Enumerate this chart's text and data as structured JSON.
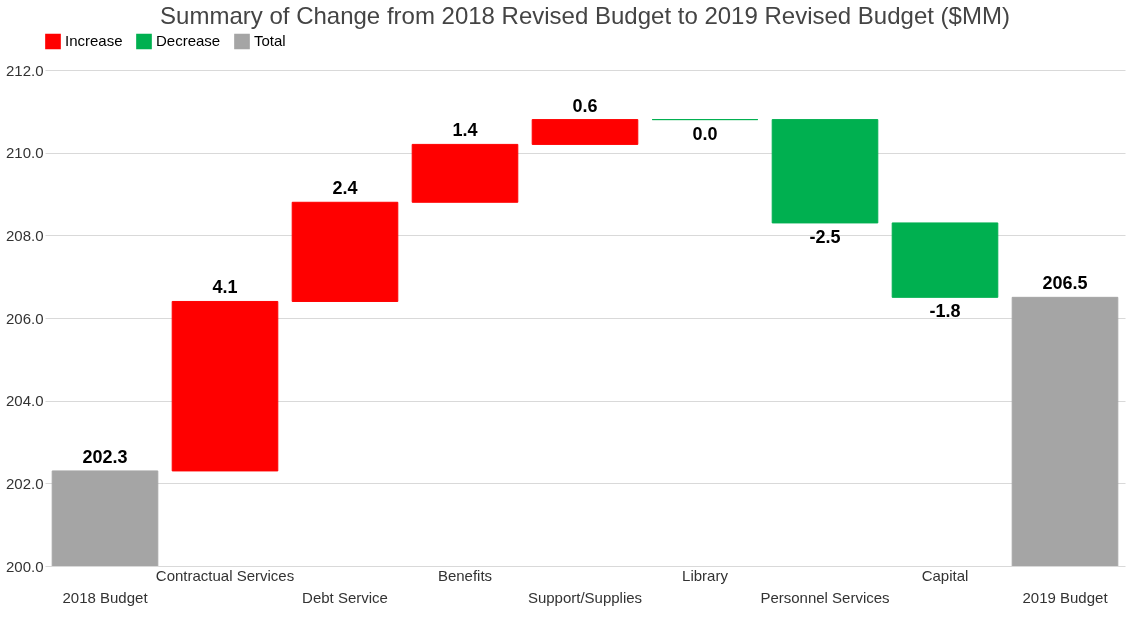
{
  "chart_data": {
    "type": "bar",
    "title": "Summary of Change from 2018 Revised Budget to 2019 Revised Budget ($MM)",
    "categories": [
      "2018 Budget",
      "Contractual Services",
      "Debt Service",
      "Benefits",
      "Support/Supplies",
      "Library",
      "Personnel Services",
      "Capital",
      "2019 Budget"
    ],
    "series": [
      {
        "name": "Increase",
        "color": "#ff0000",
        "values": [
          null,
          4.1,
          2.4,
          1.4,
          0.6,
          null,
          null,
          null,
          null
        ],
        "base": [
          null,
          202.3,
          206.4,
          208.8,
          210.2,
          null,
          null,
          null,
          null
        ],
        "value_labels": [
          null,
          "4.1",
          "2.4",
          "1.4",
          "0.6",
          null,
          null,
          null,
          null
        ]
      },
      {
        "name": "Decrease",
        "color": "#00b050",
        "values": [
          null,
          null,
          null,
          null,
          null,
          0.0,
          -2.5,
          -1.8,
          null
        ],
        "base": [
          null,
          null,
          null,
          null,
          null,
          210.8,
          210.8,
          208.3,
          null
        ],
        "value_labels": [
          null,
          null,
          null,
          null,
          null,
          "0.0",
          "-2.5",
          "-1.8",
          null
        ]
      },
      {
        "name": "Total",
        "color": "#a5a5a5",
        "values": [
          202.3,
          null,
          null,
          null,
          null,
          null,
          null,
          null,
          206.5
        ],
        "value_labels": [
          "202.3",
          null,
          null,
          null,
          null,
          null,
          null,
          null,
          "206.5"
        ]
      }
    ],
    "ylim": [
      200,
      212
    ],
    "yticks": [
      {
        "value": 200,
        "label": "200.0"
      },
      {
        "value": 202,
        "label": "202.0"
      },
      {
        "value": 204,
        "label": "204.0"
      },
      {
        "value": 206,
        "label": "206.0"
      },
      {
        "value": 208,
        "label": "208.0"
      },
      {
        "value": 210,
        "label": "210.0"
      },
      {
        "value": 212,
        "label": "212.0"
      }
    ],
    "grid": "y",
    "legend": "top"
  }
}
